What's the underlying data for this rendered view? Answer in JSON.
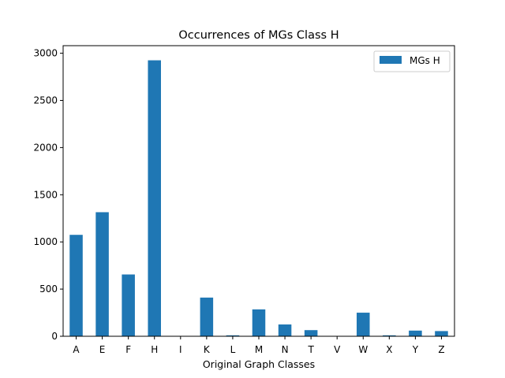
{
  "chart_data": {
    "type": "bar",
    "title": "Occurrences of MGs Class H",
    "xlabel": "Original Graph Classes",
    "ylabel": "",
    "categories": [
      "A",
      "E",
      "F",
      "H",
      "I",
      "K",
      "L",
      "M",
      "N",
      "T",
      "V",
      "W",
      "X",
      "Y",
      "Z"
    ],
    "series": [
      {
        "name": "MGs H",
        "color": "#1f77b4",
        "values": [
          1075,
          1315,
          655,
          2925,
          0,
          410,
          10,
          285,
          125,
          65,
          0,
          250,
          10,
          60,
          55
        ]
      }
    ],
    "ylim": [
      0,
      3080
    ],
    "yticks": [
      0,
      500,
      1000,
      1500,
      2000,
      2500,
      3000
    ],
    "grid": false,
    "legend_position": "top-right"
  }
}
